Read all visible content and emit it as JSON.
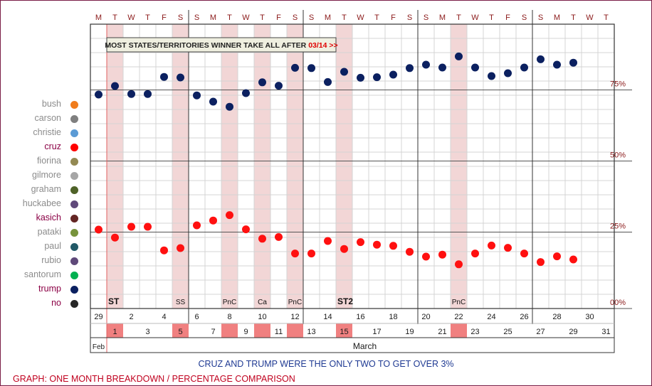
{
  "chart_data": {
    "type": "scatter",
    "title": "",
    "annotation": {
      "text": "MOST STATES/TERRITORIES WINNER TAKE ALL AFTER ",
      "date": "03/14 >>"
    },
    "y_tick_labels": [
      "75%",
      "50%",
      "25%",
      "00%"
    ],
    "y_ticks": [
      75,
      50,
      25,
      0
    ],
    "ylim": [
      0,
      100
    ],
    "weekday_letters": [
      "M",
      "T",
      "W",
      "T",
      "F",
      "S",
      "S",
      "M",
      "T",
      "W",
      "T",
      "F",
      "S",
      "S",
      "M",
      "T",
      "W",
      "T",
      "F",
      "S",
      "S",
      "M",
      "T",
      "W",
      "T",
      "F",
      "S",
      "S",
      "M",
      "T",
      "W",
      "T"
    ],
    "top_dates": [
      "29",
      "",
      "2",
      "",
      "4",
      "",
      "6",
      "",
      "8",
      "",
      "10",
      "",
      "12",
      "",
      "14",
      "",
      "16",
      "",
      "18",
      "",
      "20",
      "",
      "22",
      "",
      "24",
      "",
      "26",
      "",
      "28",
      "",
      "30",
      ""
    ],
    "bottom_dates": [
      "",
      "1",
      "",
      "3",
      "",
      "5",
      "",
      "7",
      "",
      "9",
      "",
      "11",
      "",
      "13",
      "",
      "15",
      "",
      "17",
      "",
      "19",
      "",
      "21",
      "",
      "23",
      "",
      "25",
      "",
      "27",
      "",
      "29",
      "",
      "31"
    ],
    "highlighted_days": [
      1,
      5,
      8,
      10,
      12,
      15,
      22
    ],
    "event_labels": [
      {
        "day": 1,
        "label": "ST"
      },
      {
        "day": 5,
        "label": "SS"
      },
      {
        "day": 8,
        "label": "PnC"
      },
      {
        "day": 10,
        "label": "Ca"
      },
      {
        "day": 12,
        "label": "PnC"
      },
      {
        "day": 15,
        "label": "ST2"
      },
      {
        "day": 22,
        "label": "PnC"
      }
    ],
    "month_labels": {
      "feb": "Feb",
      "march": "March"
    },
    "series": [
      {
        "name": "trump",
        "color": "#0b2060",
        "x": [
          0,
          1,
          2,
          3,
          4,
          5,
          6,
          7,
          8,
          9,
          10,
          11,
          12,
          13,
          14,
          15,
          16,
          17,
          18,
          19,
          20,
          21,
          22,
          23,
          24,
          25,
          26,
          27,
          28,
          29
        ],
        "y": [
          73.5,
          76.5,
          73.7,
          73.7,
          79.7,
          79.5,
          73.2,
          71,
          69.2,
          74,
          77.8,
          76.6,
          82.9,
          82.8,
          77.9,
          81.5,
          79.4,
          79.6,
          80.5,
          82.8,
          84,
          83,
          86.9,
          83,
          80,
          81,
          83,
          85.9,
          84,
          84.7
        ]
      },
      {
        "name": "cruz",
        "color": "#ff1010",
        "x": [
          0,
          1,
          2,
          3,
          4,
          5,
          6,
          7,
          8,
          9,
          10,
          11,
          12,
          13,
          14,
          15,
          16,
          17,
          18,
          19,
          20,
          21,
          22,
          23,
          24,
          25,
          26,
          27,
          28,
          29
        ],
        "y": [
          26,
          23.2,
          27,
          27,
          18.7,
          19.5,
          27.5,
          29.2,
          31.1,
          26.1,
          22.8,
          23.4,
          17.6,
          17.6,
          22,
          19.2,
          21.6,
          20.7,
          20.3,
          18.2,
          16.5,
          17.2,
          13.8,
          17.6,
          20.4,
          19.6,
          17.6,
          14.6,
          16.6,
          15.5
        ]
      }
    ],
    "legend": [
      {
        "name": "bush",
        "color": "#f07c1c",
        "text_color": "#8c8c8c"
      },
      {
        "name": "carson",
        "color": "#7f7f7f",
        "text_color": "#8c8c8c"
      },
      {
        "name": "christie",
        "color": "#5b9bd5",
        "text_color": "#8c8c8c"
      },
      {
        "name": "cruz",
        "color": "#ff0000",
        "text_color": "#8b0045"
      },
      {
        "name": "fiorina",
        "color": "#938953",
        "text_color": "#8c8c8c"
      },
      {
        "name": "gilmore",
        "color": "#a6a6a6",
        "text_color": "#8c8c8c"
      },
      {
        "name": "graham",
        "color": "#4f6228",
        "text_color": "#8c8c8c"
      },
      {
        "name": "huckabee",
        "color": "#60497a",
        "text_color": "#8c8c8c"
      },
      {
        "name": "kasich",
        "color": "#632523",
        "text_color": "#8b0045"
      },
      {
        "name": "pataki",
        "color": "#77933c",
        "text_color": "#8c8c8c"
      },
      {
        "name": "paul",
        "color": "#215967",
        "text_color": "#8c8c8c"
      },
      {
        "name": "rubio",
        "color": "#5f497a",
        "text_color": "#8c8c8c"
      },
      {
        "name": "santorum",
        "color": "#00b050",
        "text_color": "#8c8c8c"
      },
      {
        "name": "trump",
        "color": "#0b2060",
        "text_color": "#8b0045"
      },
      {
        "name": "no",
        "color": "#262626",
        "text_color": "#8b0045"
      }
    ]
  },
  "captions": {
    "subcaption": "CRUZ AND TRUMP WERE THE ONLY TWO TO GET OVER 3%",
    "graph_caption": "GRAPH: ONE MONTH BREAKDOWN / PERCENTAGE COMPARISON"
  }
}
